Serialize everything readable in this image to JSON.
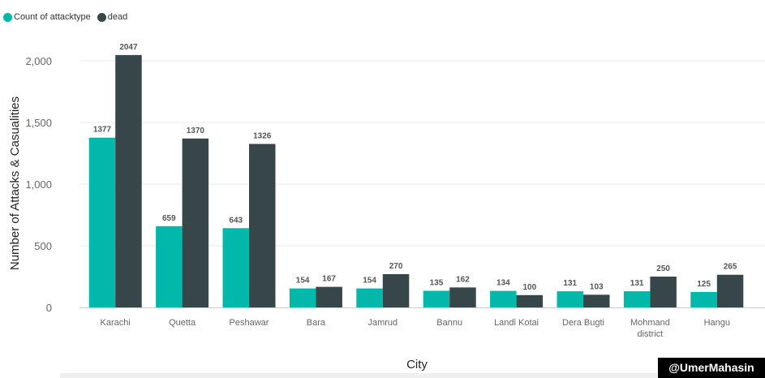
{
  "legend": {
    "items": [
      {
        "label": "Count of attacktype",
        "color": "#01B8AA"
      },
      {
        "label": "dead",
        "color": "#374649"
      }
    ]
  },
  "watermark": "@UmerMahasin",
  "chart_data": {
    "type": "bar",
    "xlabel": "City",
    "ylabel": "Number of Attacks & Casualities",
    "ylim": [
      0,
      2000
    ],
    "yticks": [
      0,
      500,
      1000,
      1500,
      2000
    ],
    "ytick_labels": [
      "0",
      "500",
      "1,000",
      "1,500",
      "2,000"
    ],
    "grid": true,
    "legend_position": "top-left",
    "categories": [
      "Karachi",
      "Quetta",
      "Peshawar",
      "Bara",
      "Jamrud",
      "Bannu",
      "Landi Kotai",
      "Dera Bugti",
      "Mohmand district",
      "Hangu"
    ],
    "category_lines": [
      [
        "Karachi"
      ],
      [
        "Quetta"
      ],
      [
        "Peshawar"
      ],
      [
        "Bara"
      ],
      [
        "Jamrud"
      ],
      [
        "Bannu"
      ],
      [
        "Landi Kotai"
      ],
      [
        "Dera Bugti"
      ],
      [
        "Mohmand",
        "district"
      ],
      [
        "Hangu"
      ]
    ],
    "series": [
      {
        "name": "Count of attacktype",
        "color": "#01B8AA",
        "values": [
          1377,
          659,
          643,
          154,
          154,
          135,
          134,
          131,
          131,
          125
        ]
      },
      {
        "name": "dead",
        "color": "#374649",
        "values": [
          2047,
          1370,
          1326,
          167,
          270,
          162,
          100,
          103,
          250,
          265
        ]
      }
    ]
  }
}
